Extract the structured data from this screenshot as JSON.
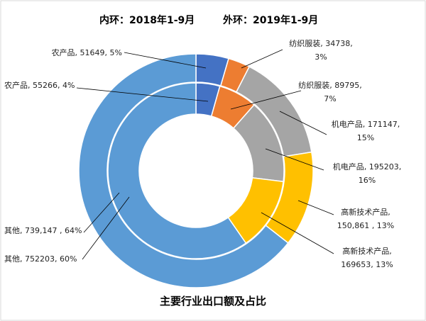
{
  "chart_data": {
    "type": "pie",
    "subtype": "double-donut",
    "title": "主要行业出口额及占比",
    "legend_header": {
      "inner": "内环：2018年1-9月",
      "outer": "外环：2019年1-9月"
    },
    "categories": [
      "农产品",
      "纺织服装",
      "机电产品",
      "高新技术产品",
      "其他"
    ],
    "colors": [
      "#4472c4",
      "#ed7d31",
      "#a5a5a5",
      "#ffc000",
      "#5b9bd5"
    ],
    "series": [
      {
        "name": "内环：2018年1-9月",
        "ring": "inner",
        "values": [
          55266,
          89795,
          195203,
          169653,
          752203
        ],
        "labels": [
          [
            "农产品, 55266, 4%"
          ],
          [
            "纺织服装, 89795,",
            "7%"
          ],
          [
            "机电产品, 195203,",
            "16%"
          ],
          [
            "高新技术产品,",
            "169653, 13%"
          ],
          [
            "其他, 752203, 60%"
          ]
        ]
      },
      {
        "name": "外环：2019年1-9月",
        "ring": "outer",
        "values": [
          51649,
          34738,
          171147,
          150861,
          739147
        ],
        "labels": [
          [
            "农产品, 51649, 5%"
          ],
          [
            "纺织服装, 34738,",
            "3%"
          ],
          [
            "机电产品, 171147,",
            "15%"
          ],
          [
            "高新技术产品,",
            "150,861 , 13%"
          ],
          [
            "其他, 739,147 , 64%"
          ]
        ]
      }
    ]
  }
}
